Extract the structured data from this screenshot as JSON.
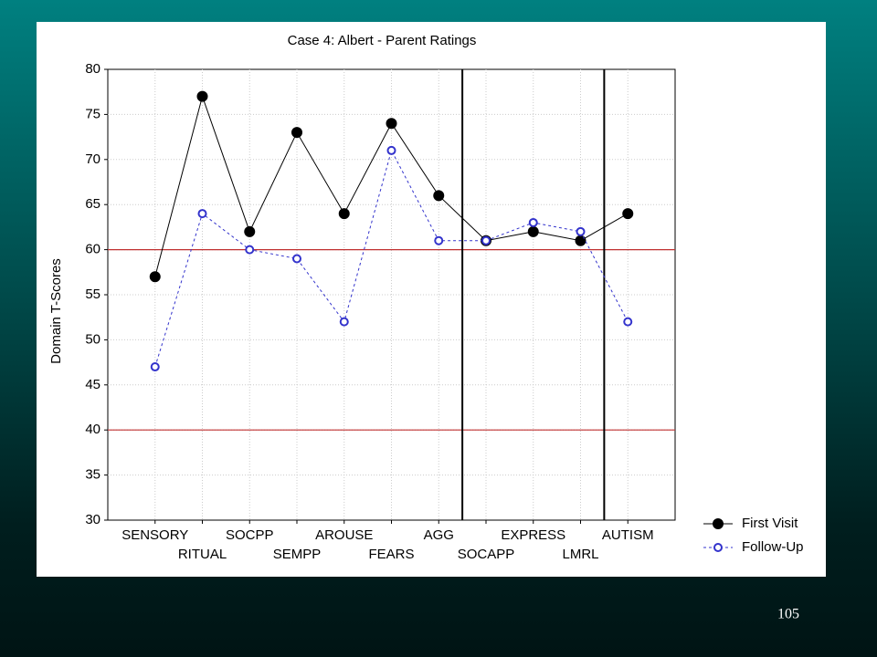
{
  "chart_data": {
    "type": "line",
    "title": "Case 4: Albert - Parent Ratings",
    "y_label": "Domain T-Scores",
    "categories": [
      "SENSORY",
      "RITUAL",
      "SOCPP",
      "SEMPP",
      "AROUSE",
      "FEARS",
      "AGG",
      "SOCAPP",
      "EXPRESS",
      "LMRL",
      "AUTISM"
    ],
    "series": [
      {
        "name": "First Visit",
        "color": "#000000",
        "marker": "filled",
        "dashed": false,
        "values": [
          57,
          77,
          62,
          73,
          64,
          74,
          66,
          61,
          62,
          61,
          64
        ]
      },
      {
        "name": "Follow-Up",
        "color": "#3333cc",
        "marker": "open",
        "dashed": true,
        "values": [
          47,
          64,
          60,
          59,
          52,
          71,
          61,
          61,
          63,
          62,
          52
        ]
      }
    ],
    "ylim": [
      30,
      80
    ],
    "yticks": [
      30,
      35,
      40,
      45,
      50,
      55,
      60,
      65,
      70,
      75,
      80
    ],
    "reference_lines": [
      40,
      60
    ],
    "reference_color": "#c03030",
    "dividers_after": [
      "AGG",
      "LMRL"
    ],
    "grid": true,
    "legend": "bottom-right"
  },
  "slide_number": "105"
}
